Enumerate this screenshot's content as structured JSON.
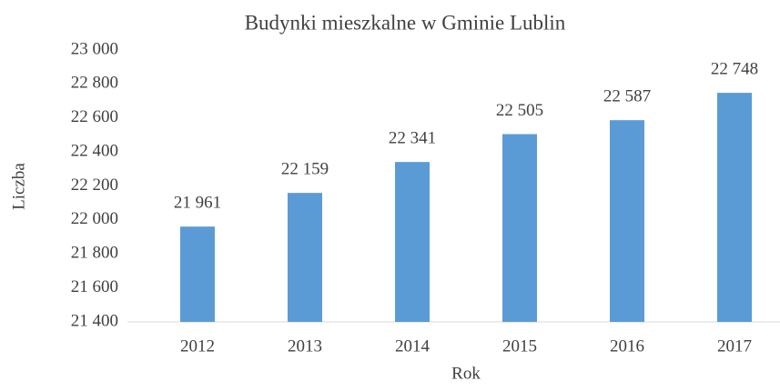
{
  "chart_data": {
    "type": "bar",
    "title": "Budynki mieszkalne w Gminie Lublin",
    "x_label": "Rok",
    "y_label": "Liczba",
    "categories": [
      "2012",
      "2013",
      "2014",
      "2015",
      "2016",
      "2017"
    ],
    "values": [
      21961,
      22159,
      22341,
      22505,
      22587,
      22748
    ],
    "value_labels": [
      "21 961",
      "22 159",
      "22 341",
      "22 505",
      "22 587",
      "22 748"
    ],
    "color": "#5b9bd5",
    "ylim": [
      21400,
      23000
    ],
    "yticks": [
      {
        "value": 21400,
        "label": "21 400"
      },
      {
        "value": 21600,
        "label": "21 600"
      },
      {
        "value": 21800,
        "label": "21 800"
      },
      {
        "value": 22000,
        "label": "22 000"
      },
      {
        "value": 22200,
        "label": "22 200"
      },
      {
        "value": 22400,
        "label": "22 400"
      },
      {
        "value": 22600,
        "label": "22 600"
      },
      {
        "value": 22800,
        "label": "22 800"
      },
      {
        "value": 23000,
        "label": "23 000"
      }
    ],
    "grid": false
  }
}
